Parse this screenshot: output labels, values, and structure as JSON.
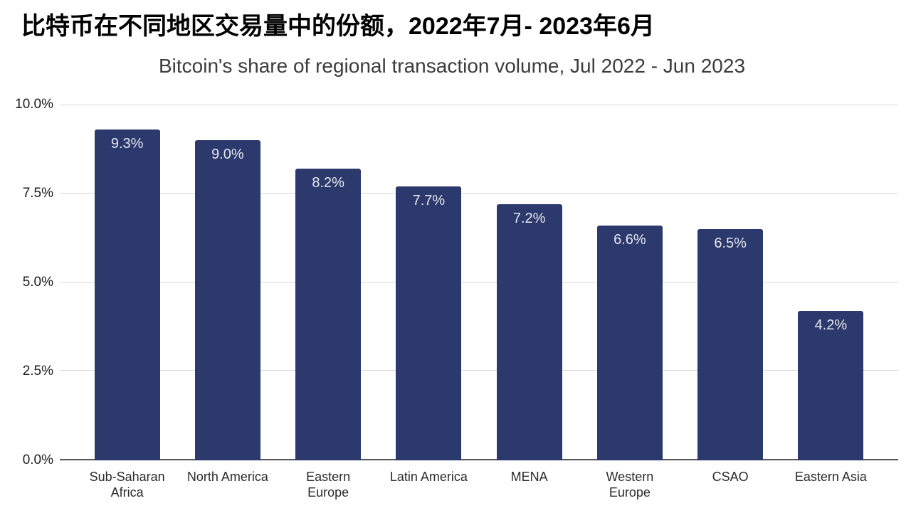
{
  "header": {
    "title_zh": "比特币在不同地区交易量中的份额，2022年7月- 2023年6月"
  },
  "chart_data": {
    "type": "bar",
    "title": "Bitcoin's share of regional transaction volume, Jul 2022 - Jun 2023",
    "categories": [
      "Sub-Saharan Africa",
      "North America",
      "Eastern Europe",
      "Latin America",
      "MENA",
      "Western Europe",
      "CSAO",
      "Eastern Asia"
    ],
    "category_label_lines": [
      [
        "Sub-Saharan",
        "Africa"
      ],
      [
        "North America"
      ],
      [
        "Eastern",
        "Europe"
      ],
      [
        "Latin America"
      ],
      [
        "MENA"
      ],
      [
        "Western",
        "Europe"
      ],
      [
        "CSAO"
      ],
      [
        "Eastern Asia"
      ]
    ],
    "values": [
      9.3,
      9.0,
      8.2,
      7.7,
      7.2,
      6.6,
      6.5,
      4.2
    ],
    "value_labels": [
      "9.3%",
      "9.0%",
      "8.2%",
      "7.7%",
      "7.2%",
      "6.6%",
      "6.5%",
      "4.2%"
    ],
    "xlabel": "",
    "ylabel": "",
    "ylim": [
      0,
      10
    ],
    "yticks": [
      0,
      2.5,
      5,
      7.5,
      10
    ],
    "ytick_labels": [
      "0.0%",
      "2.5%",
      "5.0%",
      "7.5%",
      "10.0%"
    ],
    "grid": true,
    "legend": false,
    "bar_color": "#2c396d",
    "value_label_color": "#e6e7ec",
    "gridline_color": "#d8d8d8",
    "axis_line_color": "#55565a",
    "background_color": "#ffffff"
  }
}
